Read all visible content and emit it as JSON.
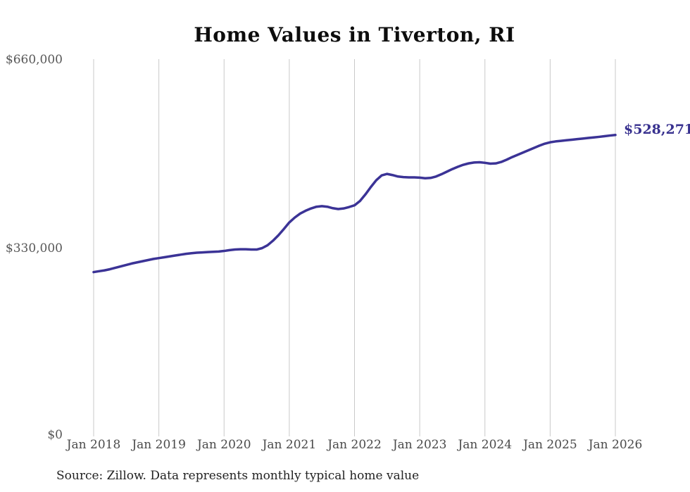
{
  "title": "Home Values in Tiverton, RI",
  "source_note": "Source: Zillow. Data represents monthly typical home value",
  "colors": {
    "line": "#3b3396",
    "grid": "#c9c9c9",
    "axis_text": "#575757",
    "title_text": "#0d0d0d",
    "end_label_text": "#38318f",
    "background": "#ffffff"
  },
  "chart_data": {
    "type": "line",
    "title": "Home Values in Tiverton, RI",
    "xlabel": "",
    "ylabel": "",
    "grid": "vertical-gridlines-only",
    "legend": "none",
    "ylim": [
      0,
      660000
    ],
    "y_ticks": [
      {
        "label": "$0",
        "value": 0
      },
      {
        "label": "$330,000",
        "value": 330000
      },
      {
        "label": "$660,000",
        "value": 660000
      }
    ],
    "x_tick_labels": [
      "Jan 2018",
      "Jan 2019",
      "Jan 2020",
      "Jan 2021",
      "Jan 2022",
      "Jan 2023",
      "Jan 2024",
      "Jan 2025",
      "Jan 2026"
    ],
    "series": [
      {
        "name": "Monthly typical home value",
        "x_start": "Jan 2018",
        "x_end": "Jan 2026",
        "interval": "monthly",
        "final_value": 528271,
        "final_value_label": "$528,271",
        "values": [
          288000,
          289500,
          291000,
          293000,
          295500,
          298000,
          300500,
          303000,
          305000,
          307000,
          309000,
          311000,
          312500,
          314000,
          315500,
          317000,
          318500,
          320000,
          321000,
          322000,
          322500,
          323000,
          323500,
          324000,
          325000,
          326500,
          327500,
          328000,
          328000,
          327500,
          327500,
          330000,
          335000,
          343000,
          352500,
          363500,
          375000,
          383500,
          390500,
          395500,
          399500,
          402500,
          403500,
          402500,
          400000,
          398500,
          399500,
          402000,
          405000,
          412500,
          424000,
          437000,
          449000,
          457500,
          460000,
          458000,
          455500,
          454500,
          454000,
          454000,
          453500,
          452500,
          453000,
          455500,
          459500,
          464000,
          468500,
          472500,
          476000,
          478500,
          480000,
          480500,
          479500,
          478000,
          478500,
          481000,
          485000,
          489500,
          493500,
          497500,
          501500,
          505500,
          509500,
          513000,
          515500,
          517000,
          518000,
          519000,
          520000,
          521000,
          522000,
          523000,
          524000,
          525000,
          526200,
          527300,
          528271
        ]
      }
    ]
  }
}
